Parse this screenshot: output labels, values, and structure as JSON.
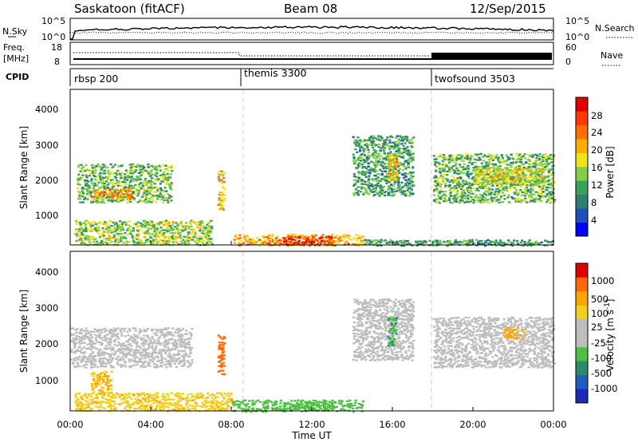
{
  "header": {
    "site": "Saskatoon (fitACF)",
    "beam": "Beam 08",
    "date": "12/Sep/2015"
  },
  "top_panels": {
    "nsky_label": "N.Sky",
    "nsearch_label": "N.Search",
    "nsky_ticks": [
      "10^5",
      "10^0"
    ],
    "nsky_ticks_right": [
      "10^5",
      "10^0"
    ],
    "freq_label_1": "Freq.",
    "freq_label_2": "[MHz]",
    "freq_ticks": [
      "18",
      "8"
    ],
    "nave_ticks": [
      "60",
      "0"
    ],
    "nave_label": "Nave",
    "cpid_label": "CPID",
    "cpid_segments": [
      {
        "name": "rbsp 200",
        "start_hour": 0
      },
      {
        "name": "themis 3300",
        "start_hour": 8.7
      },
      {
        "name": "twofsound 3503",
        "start_hour": 18
      }
    ]
  },
  "axes": {
    "ylabel": "Slant Range [km]",
    "xlabel": "Time UT",
    "y_ticks": [
      "4000",
      "3000",
      "2000",
      "1000"
    ],
    "x_ticks": [
      "00:00",
      "04:00",
      "08:00",
      "12:00",
      "16:00",
      "20:00",
      "00:00"
    ]
  },
  "power_bar": {
    "label": "Power [dB]",
    "ticks": [
      "28",
      "24",
      "20",
      "16",
      "12",
      "8",
      "4"
    ],
    "colors": [
      "#0000ff",
      "#1f4fbf",
      "#2f7f6f",
      "#3aa05a",
      "#7fd046",
      "#f2e21a",
      "#ffae00",
      "#ff7000",
      "#ff3a00",
      "#e00000"
    ]
  },
  "velocity_bar": {
    "label": "Velocity [m s^-1]",
    "ticks": [
      "1000",
      "500",
      "100",
      "25",
      "-25",
      "-100",
      "-500",
      "-1000"
    ],
    "colors": [
      "#1a2ab8",
      "#1f5ec0",
      "#2a8a6a",
      "#4cc040",
      "#bdbdbd",
      "#bdbdbd",
      "#f2d01a",
      "#ffa500",
      "#ff6a00",
      "#e00000"
    ]
  },
  "chart_data": [
    {
      "type": "heatmap",
      "title": "Saskatoon (fitACF) Beam 08 12/Sep/2015",
      "xlabel": "Time UT",
      "ylabel": "Slant Range [km]",
      "colorbar_label": "Power [dB]",
      "x_range_hours": [
        0,
        24
      ],
      "y_range_km": [
        180,
        4600
      ],
      "color_range": [
        0,
        30
      ],
      "regions": [
        {
          "t0": 0.3,
          "t1": 5.0,
          "r0": 1400,
          "r1": 2500,
          "value": 12
        },
        {
          "t0": 1.0,
          "t1": 3.0,
          "r0": 1500,
          "r1": 1800,
          "value": 20
        },
        {
          "t0": 0.2,
          "t1": 7.0,
          "r0": 200,
          "r1": 900,
          "value": 14
        },
        {
          "t0": 7.3,
          "t1": 7.6,
          "r0": 1200,
          "r1": 2300,
          "value": 18
        },
        {
          "t0": 8.0,
          "t1": 14.5,
          "r0": 180,
          "r1": 500,
          "value": 20
        },
        {
          "t0": 10.5,
          "t1": 13.0,
          "r0": 200,
          "r1": 450,
          "value": 26
        },
        {
          "t0": 14.0,
          "t1": 17.0,
          "r0": 1600,
          "r1": 3300,
          "value": 10
        },
        {
          "t0": 15.7,
          "t1": 16.2,
          "r0": 2000,
          "r1": 2800,
          "value": 18
        },
        {
          "t0": 18.0,
          "t1": 24.0,
          "r0": 1400,
          "r1": 2800,
          "value": 12
        },
        {
          "t0": 20.0,
          "t1": 23.5,
          "r0": 1900,
          "r1": 2400,
          "value": 16
        },
        {
          "t0": 14.5,
          "t1": 24.0,
          "r0": 180,
          "r1": 350,
          "value": 10
        }
      ]
    },
    {
      "type": "heatmap",
      "xlabel": "Time UT",
      "ylabel": "Slant Range [km]",
      "colorbar_label": "Velocity [m s^-1]",
      "x_range_hours": [
        0,
        24
      ],
      "y_range_km": [
        180,
        4600
      ],
      "regions": [
        {
          "t0": 0.0,
          "t1": 6.0,
          "r0": 1400,
          "r1": 2500,
          "value": 0
        },
        {
          "t0": 1.0,
          "t1": 2.0,
          "r0": 700,
          "r1": 1300,
          "value": 100
        },
        {
          "t0": 7.3,
          "t1": 7.6,
          "r0": 1200,
          "r1": 2300,
          "value": 600
        },
        {
          "t0": 0.2,
          "t1": 8.0,
          "r0": 200,
          "r1": 700,
          "value": 80
        },
        {
          "t0": 8.0,
          "t1": 14.5,
          "r0": 180,
          "r1": 500,
          "value": -150
        },
        {
          "t0": 10.5,
          "t1": 13.0,
          "r0": 200,
          "r1": 450,
          "value": -400
        },
        {
          "t0": 14.0,
          "t1": 17.0,
          "r0": 1600,
          "r1": 3300,
          "value": 0
        },
        {
          "t0": 15.7,
          "t1": 16.2,
          "r0": 2000,
          "r1": 2800,
          "value": -500
        },
        {
          "t0": 18.0,
          "t1": 24.0,
          "r0": 1400,
          "r1": 2800,
          "value": 0
        },
        {
          "t0": 21.5,
          "t1": 22.5,
          "r0": 2200,
          "r1": 2500,
          "value": 150
        }
      ]
    }
  ]
}
